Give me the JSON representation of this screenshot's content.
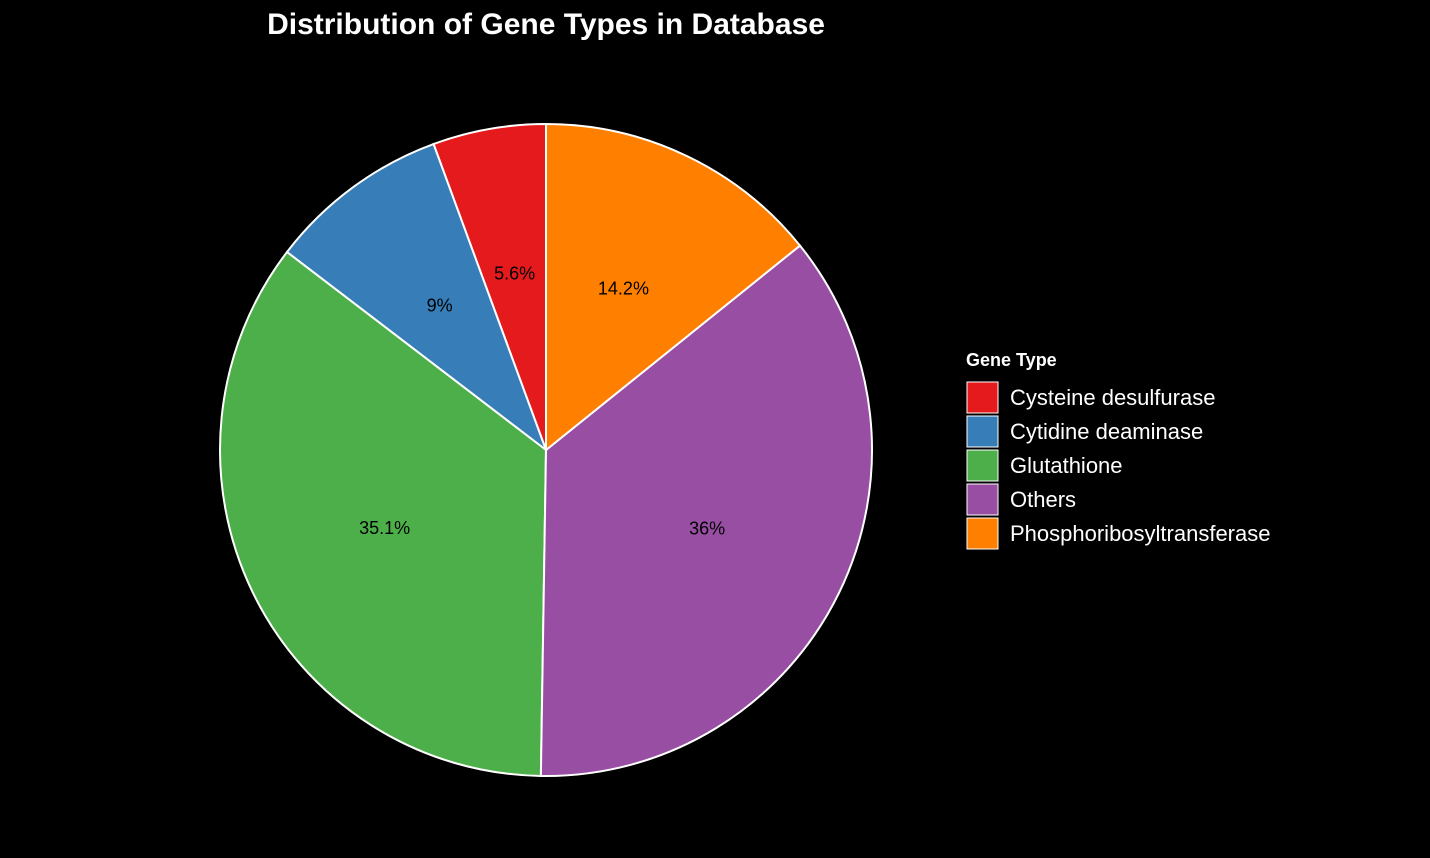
{
  "chart_data": {
    "type": "pie",
    "title": "Distribution of Gene Types in Database",
    "legend_title": "Gene Type",
    "legend_placement": "right",
    "categories": [
      "Cysteine desulfurase",
      "Cytidine deaminase",
      "Glutathione",
      "Others",
      "Phosphoribosyltransferase"
    ],
    "values": [
      5.6,
      9,
      35.1,
      36,
      14.2
    ],
    "labels": [
      "5.6%",
      "9%",
      "35.1%",
      "36%",
      "14.2%"
    ],
    "colors": [
      "#e41a1c",
      "#377eb8",
      "#4daf4a",
      "#984ea3",
      "#ff7f00"
    ],
    "slice_order": [
      0,
      1,
      2,
      3,
      4
    ],
    "direction": "counterclockwise",
    "start_angle_deg": 0
  }
}
